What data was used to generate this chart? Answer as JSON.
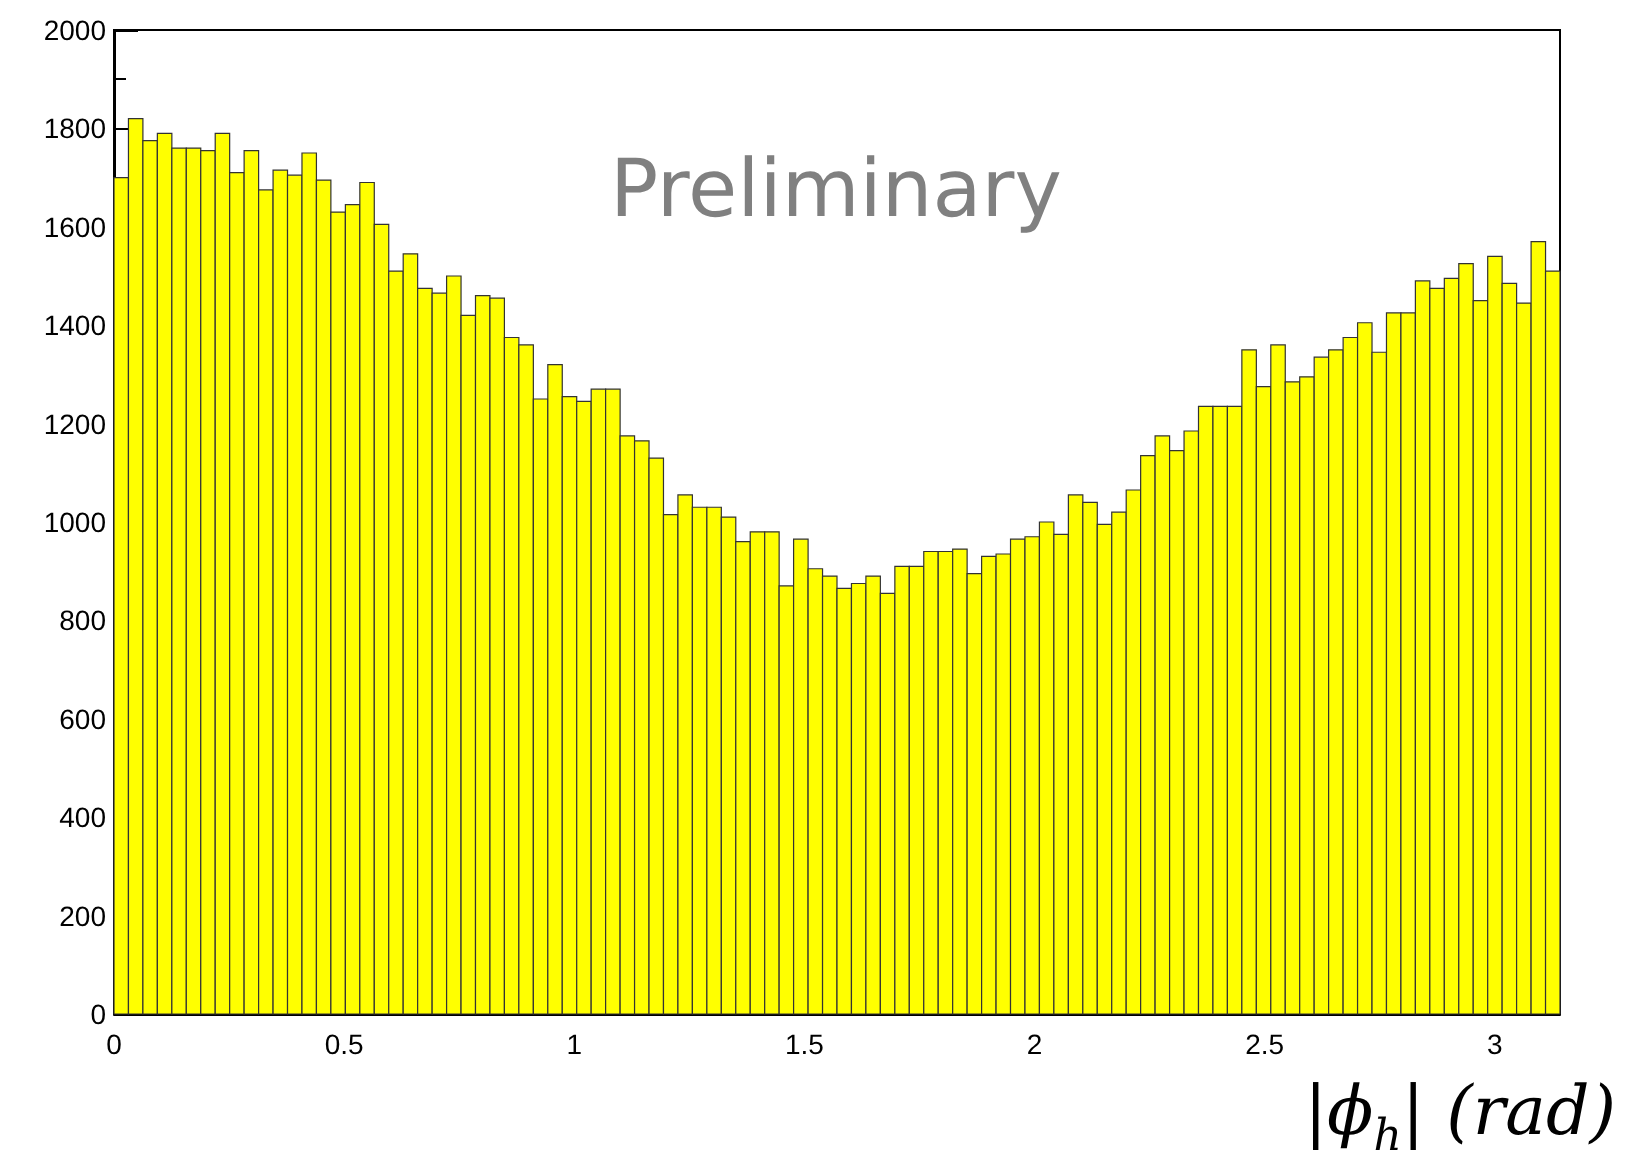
{
  "chart_data": {
    "type": "histogram",
    "xlabel": "|ϕ$_{h}$| (rad)",
    "annotations": [
      "Preliminary"
    ],
    "color": "#ffff00",
    "bins": [
      0,
      0.0314,
      0.0628,
      0.0942,
      0.1257,
      0.1571,
      0.1885,
      0.2199,
      0.2513,
      0.2827,
      0.3142,
      0.3456,
      0.377,
      0.4084,
      0.4398,
      0.4712,
      0.5027,
      0.5341,
      0.5655,
      0.5969,
      0.6283,
      0.6597,
      0.6912,
      0.7226,
      0.754,
      0.7854,
      0.8168,
      0.8482,
      0.8796,
      0.9111,
      0.9425,
      0.9739,
      1.0053,
      1.0367,
      1.0681,
      1.0996,
      1.131,
      1.1624,
      1.1938,
      1.2252,
      1.2566,
      1.2881,
      1.3195,
      1.3509,
      1.3823,
      1.4137,
      1.4451,
      1.4765,
      1.508,
      1.5394,
      1.5708,
      1.6022,
      1.6336,
      1.665,
      1.6965,
      1.7279,
      1.7593,
      1.7907,
      1.8221,
      1.8535,
      1.885,
      1.9164,
      1.9478,
      1.9792,
      2.0106,
      2.042,
      2.0735,
      2.1049,
      2.1363,
      2.1677,
      2.1991,
      2.2305,
      2.2619,
      2.2934,
      2.3248,
      2.3562,
      2.3876,
      2.419,
      2.4504,
      2.4819,
      2.5133,
      2.5447,
      2.5761,
      2.6075,
      2.6389,
      2.6704,
      2.7018,
      2.7332,
      2.7646,
      2.796,
      2.8274,
      2.8588,
      2.8903,
      2.9217,
      2.9531,
      2.9845,
      3.0159,
      3.0473,
      3.0788,
      3.1102,
      3.1416
    ],
    "values": [
      1700,
      1820,
      1775,
      1790,
      1760,
      1760,
      1755,
      1790,
      1710,
      1755,
      1675,
      1715,
      1705,
      1750,
      1695,
      1630,
      1645,
      1690,
      1605,
      1510,
      1545,
      1475,
      1465,
      1500,
      1420,
      1460,
      1455,
      1375,
      1360,
      1250,
      1320,
      1255,
      1245,
      1270,
      1270,
      1175,
      1165,
      1130,
      1015,
      1055,
      1030,
      1030,
      1010,
      960,
      980,
      980,
      870,
      965,
      905,
      890,
      865,
      875,
      890,
      855,
      910,
      910,
      940,
      940,
      945,
      895,
      930,
      935,
      965,
      970,
      1000,
      975,
      1055,
      1040,
      995,
      1020,
      1065,
      1135,
      1175,
      1145,
      1185,
      1235,
      1235,
      1235,
      1350,
      1275,
      1360,
      1285,
      1295,
      1335,
      1350,
      1375,
      1405,
      1345,
      1425,
      1425,
      1490,
      1475,
      1495,
      1525,
      1450,
      1540,
      1485,
      1445,
      1570,
      1510
    ],
    "xlim": [
      0,
      3.1416
    ],
    "xticks": [
      0,
      0.5,
      1,
      1.5,
      2,
      2.5,
      3
    ],
    "ylim": [
      0,
      2000
    ],
    "yticks": [
      0,
      200,
      400,
      600,
      800,
      1000,
      1200,
      1400,
      1600,
      1800,
      2000
    ],
    "grid": false,
    "legend": false
  }
}
